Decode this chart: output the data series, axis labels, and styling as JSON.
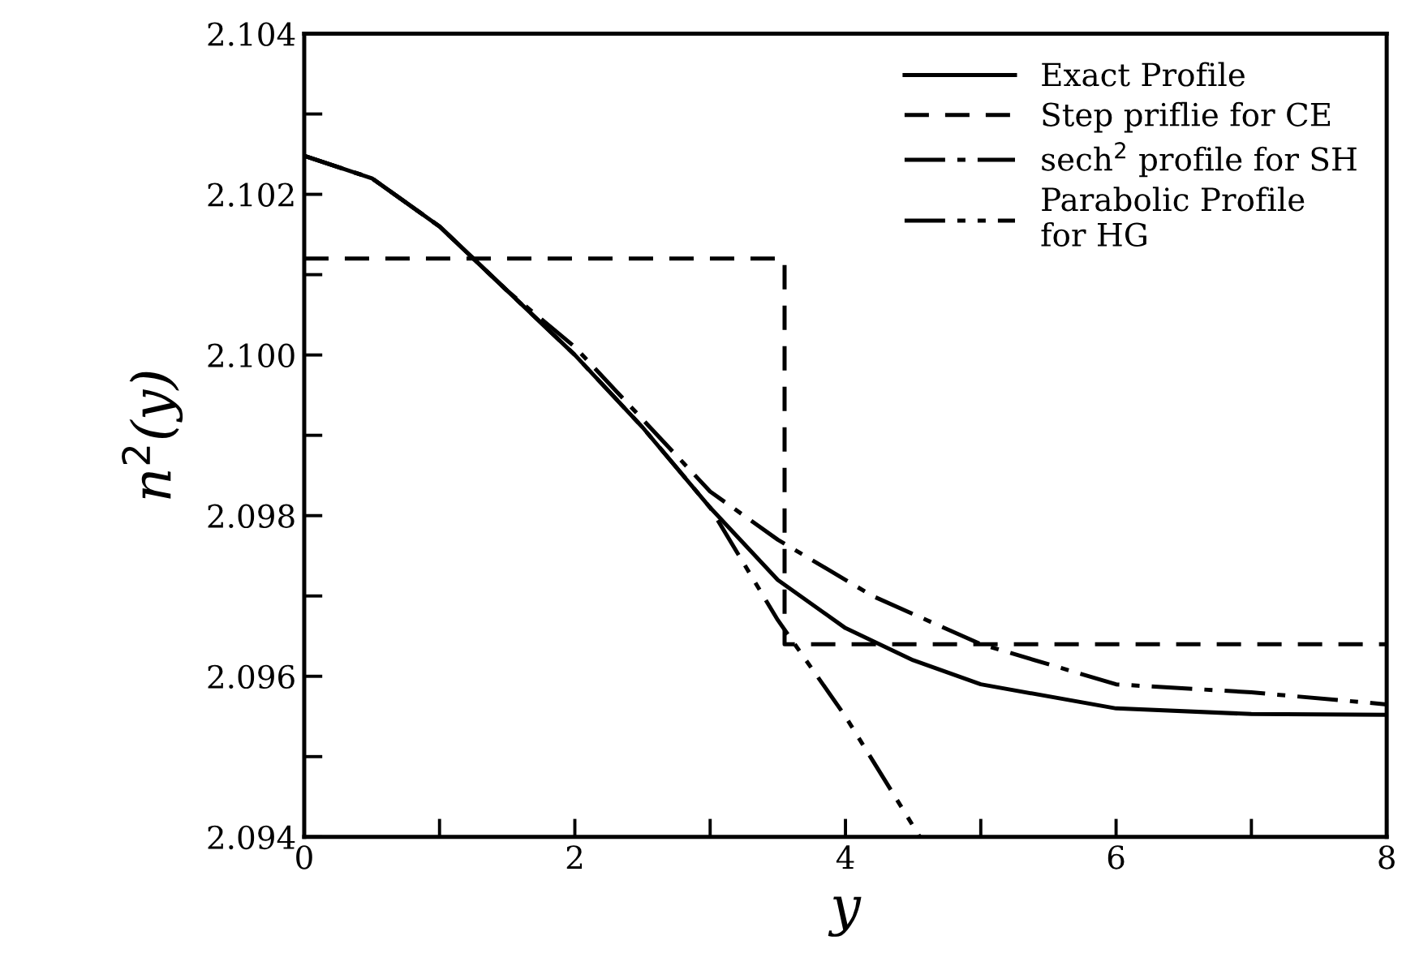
{
  "chart_data": {
    "type": "line",
    "xlabel": "y",
    "ylabel": "n$^{2}$(y)",
    "xlim": [
      0,
      8
    ],
    "ylim": [
      2.094,
      2.104
    ],
    "xticks": [
      0,
      {
        "value": 1,
        "label": null
      },
      2,
      {
        "value": 3,
        "label": null
      },
      4,
      {
        "value": 5,
        "label": null
      },
      6,
      {
        "value": 7,
        "label": null
      },
      8
    ],
    "yticks": [
      {
        "value": 2.094,
        "label": "2.094"
      },
      {
        "value": 2.095,
        "label": null
      },
      {
        "value": 2.096,
        "label": "2.096"
      },
      {
        "value": 2.097,
        "label": null
      },
      {
        "value": 2.098,
        "label": "2.098"
      },
      {
        "value": 2.099,
        "label": null
      },
      {
        "value": 2.1,
        "label": "2.100"
      },
      {
        "value": 2.101,
        "label": null
      },
      {
        "value": 2.102,
        "label": "2.102"
      },
      {
        "value": 2.103,
        "label": null
      },
      {
        "value": 2.104,
        "label": "2.104"
      }
    ],
    "grid": false,
    "legend": "top right",
    "marker": "none",
    "series": [
      {
        "name": "Exact Profile",
        "color": "#000000",
        "line_style": "solid",
        "x": [
          0,
          0.5,
          1,
          1.5,
          2,
          2.5,
          3,
          3.5,
          4,
          4.5,
          5,
          6,
          7,
          8
        ],
        "values": [
          2.10248,
          2.1022,
          2.1016,
          2.1008,
          2.1,
          2.0991,
          2.0981,
          2.0972,
          2.0966,
          2.0962,
          2.0959,
          2.0956,
          2.09553,
          2.09552
        ]
      },
      {
        "name": "Step priflie for CE",
        "color": "#000000",
        "line_style": "dashed",
        "x": [
          0,
          3.55,
          3.55,
          8
        ],
        "values": [
          2.1012,
          2.1012,
          2.0964,
          2.0964
        ]
      },
      {
        "name": "sech$^{2}$ profile for SH",
        "color": "#000000",
        "line_style": "dashdot",
        "x": [
          0,
          0.5,
          1,
          1.5,
          2,
          2.5,
          3,
          3.5,
          4.2,
          5,
          6,
          7,
          8
        ],
        "values": [
          2.10248,
          2.1022,
          2.1016,
          2.1008,
          2.1001,
          2.0992,
          2.0983,
          2.0977,
          2.097,
          2.0964,
          2.0959,
          2.0958,
          2.09565
        ]
      },
      {
        "name": "Parabolic Profile\nfor HG",
        "color": "#000000",
        "line_style": "dashdotdot",
        "x": [
          0,
          0.5,
          1,
          1.5,
          2,
          2.5,
          3,
          3.5,
          4,
          4.55
        ],
        "values": [
          2.10248,
          2.1022,
          2.1016,
          2.1008,
          2.1,
          2.0991,
          2.0981,
          2.0967,
          2.0955,
          2.094
        ]
      }
    ]
  }
}
